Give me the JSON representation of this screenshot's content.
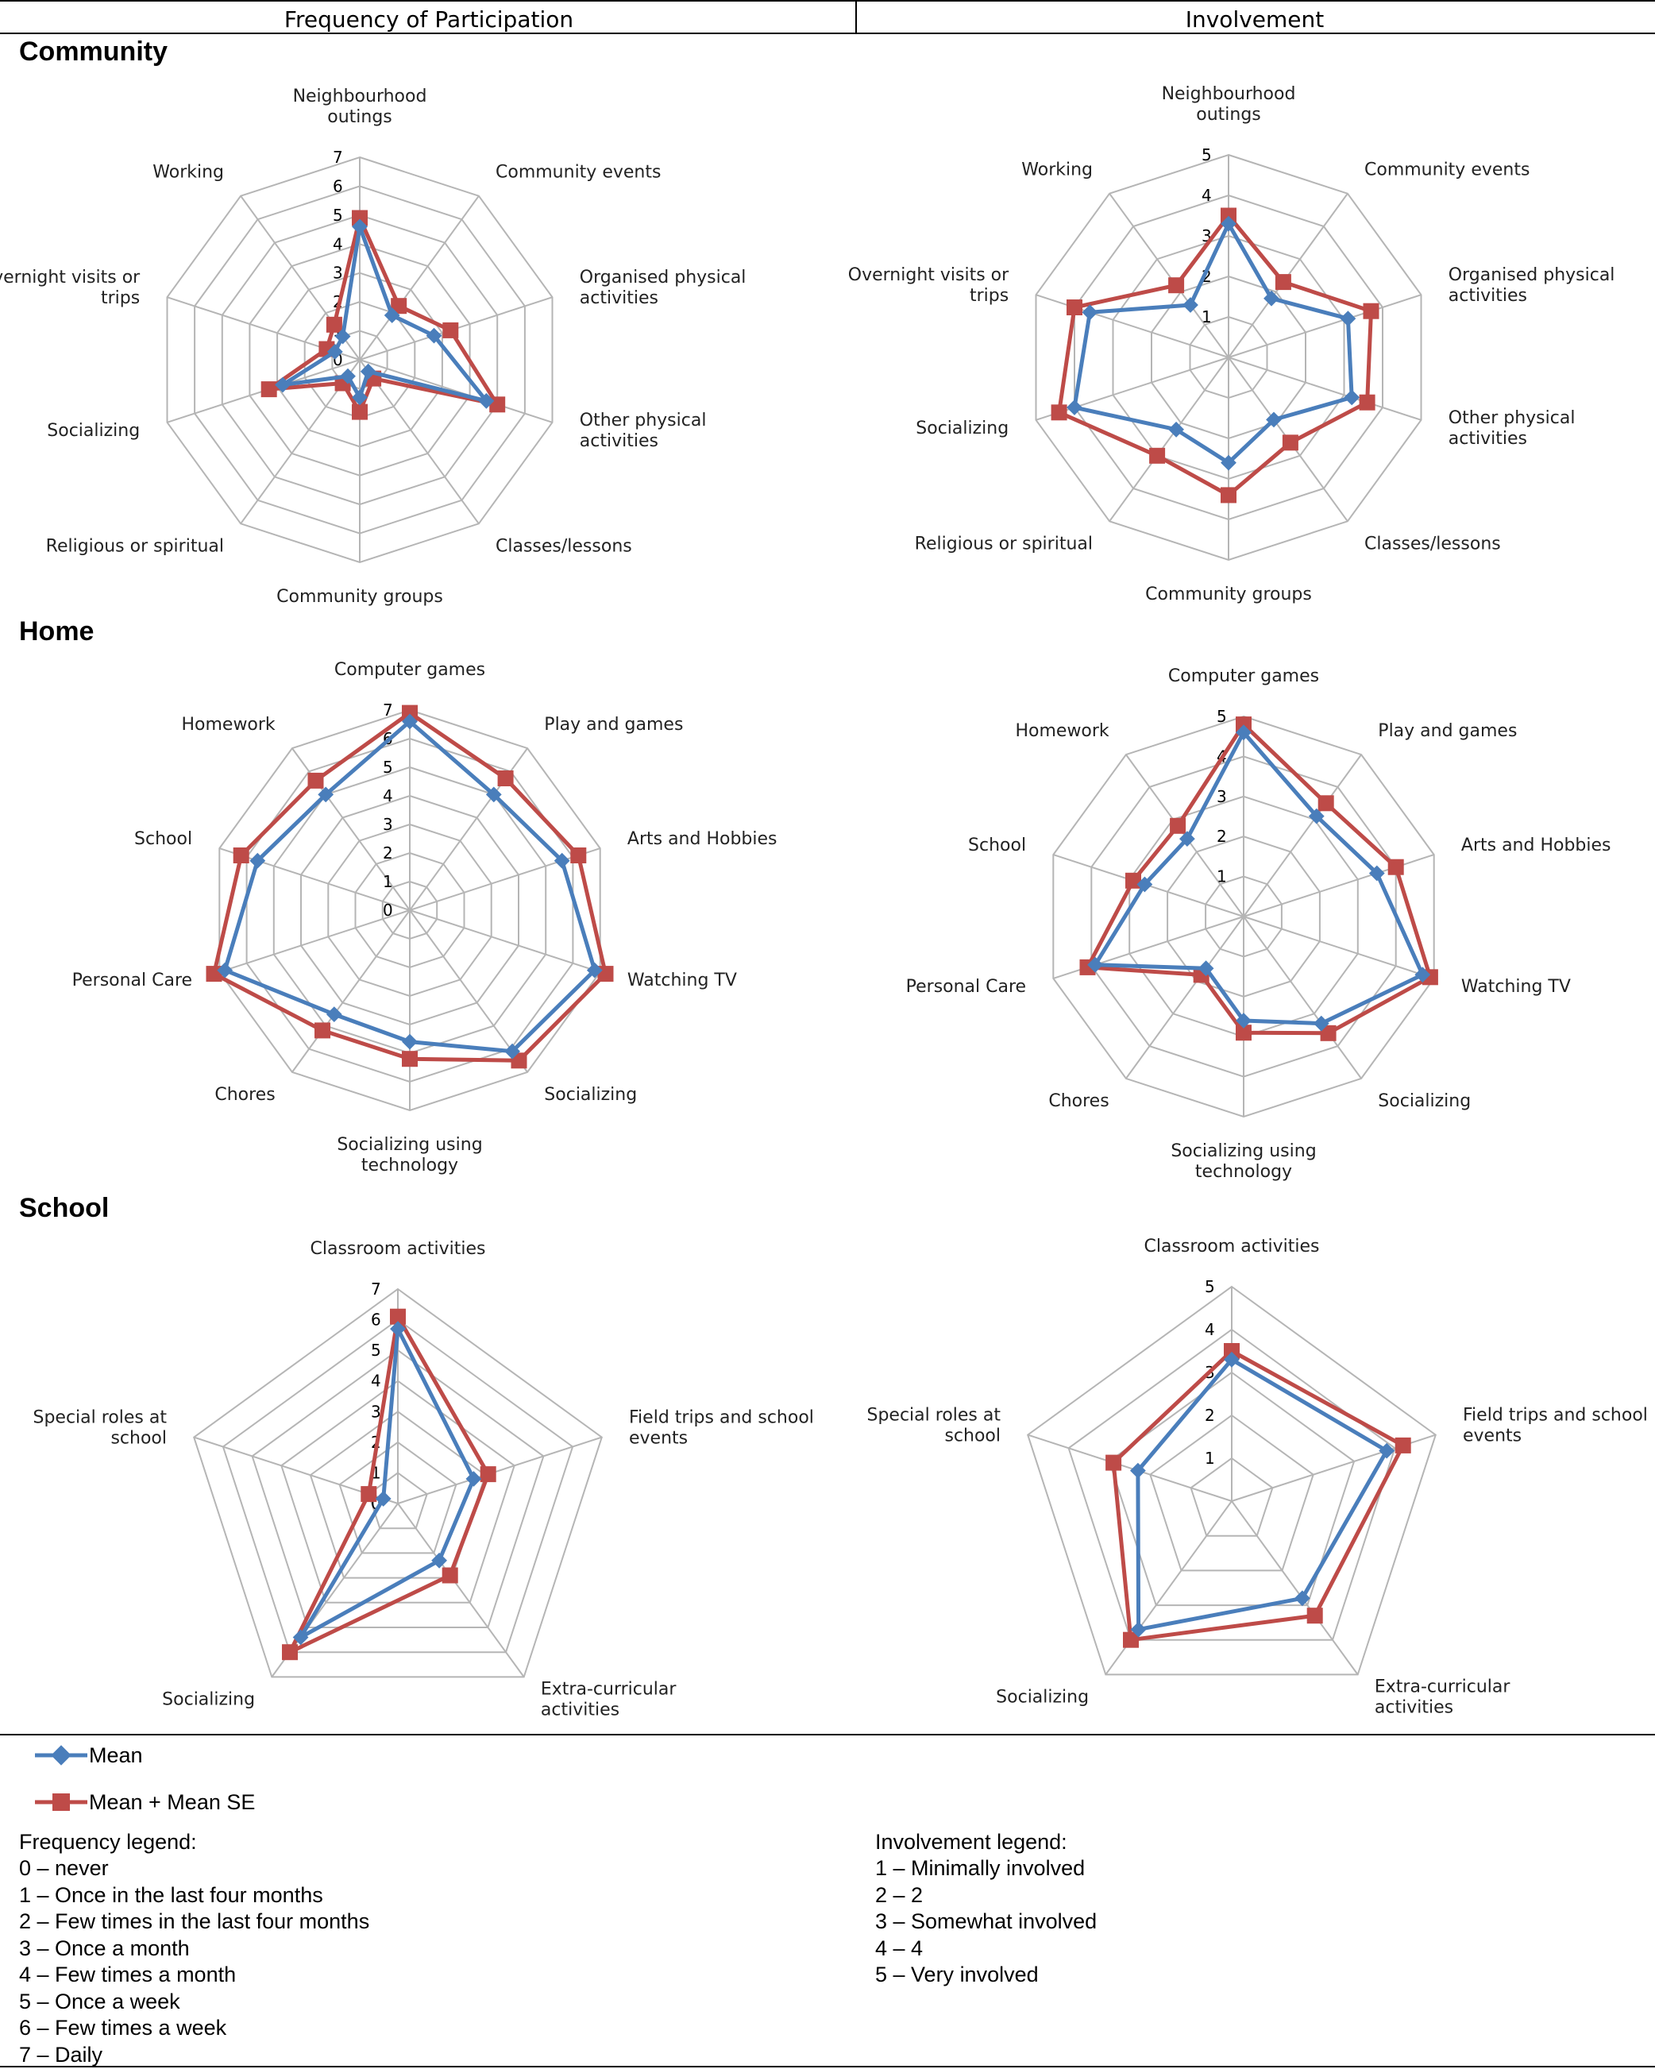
{
  "columns": {
    "left": "Frequency of Participation",
    "right": "Involvement"
  },
  "sections": [
    {
      "title": "Community"
    },
    {
      "title": "Home"
    },
    {
      "title": "School"
    }
  ],
  "legend": {
    "mean": "Mean",
    "mean_se": "Mean + Mean SE",
    "mean_color": "#4a7ebb",
    "mean_se_color": "#be4b48"
  },
  "frequency_legend": {
    "title": "Frequency legend:",
    "items": [
      "0 – never",
      "1 – Once in the last four months",
      "2 – Few times in the last four months",
      "3 – Once a month",
      "4 – Few times a month",
      "5 – Once a week",
      "6 – Few times a week",
      "7 – Daily"
    ]
  },
  "involvement_legend": {
    "title": "Involvement legend:",
    "items": [
      "1 – Minimally involved",
      "2 – 2",
      "3 – Somewhat involved",
      "4 – 4",
      "5 – Very involved"
    ]
  },
  "chart_data": [
    {
      "type": "radar",
      "section": "Community",
      "title": "Frequency of Participation",
      "scale": [
        0,
        7
      ],
      "ticks": [
        "0",
        "1",
        "2",
        "3",
        "4",
        "5",
        "6",
        "7"
      ],
      "categories": [
        "Neighbourhood outings",
        "Community events",
        "Organised physical activities",
        "Other physical activities",
        "Classes/lessons",
        "Community groups",
        "Religious or spiritual",
        "Socializing",
        "Overnight visits or trips",
        "Working"
      ],
      "label_lines": [
        [
          "Neighbourhood",
          "outings"
        ],
        [
          "Community events"
        ],
        [
          "Organised physical",
          "activities"
        ],
        [
          "Other physical",
          "activities"
        ],
        [
          "Classes/lessons"
        ],
        [
          "Community groups"
        ],
        [
          "Religious or spiritual"
        ],
        [
          "Socializing"
        ],
        [
          "Overnight visits or",
          "trips"
        ],
        [
          "Working"
        ]
      ],
      "series": [
        {
          "name": "Mean",
          "values": [
            4.6,
            1.9,
            2.7,
            4.6,
            0.5,
            1.3,
            0.7,
            2.8,
            0.9,
            1.0
          ]
        },
        {
          "name": "Mean + Mean SE",
          "values": [
            4.9,
            2.3,
            3.3,
            5.0,
            0.8,
            1.8,
            1.0,
            3.3,
            1.2,
            1.5
          ]
        }
      ]
    },
    {
      "type": "radar",
      "section": "Community",
      "title": "Involvement",
      "scale": [
        0,
        5
      ],
      "ticks": [
        "1",
        "2",
        "3",
        "4",
        "5"
      ],
      "categories": [
        "Neighbourhood outings",
        "Community events",
        "Organised physical activities",
        "Other physical activities",
        "Classes/lessons",
        "Community groups",
        "Religious or spiritual",
        "Socializing",
        "Overnight visits or trips",
        "Working"
      ],
      "label_lines": [
        [
          "Neighbourhood",
          "outings"
        ],
        [
          "Community events"
        ],
        [
          "Organised physical",
          "activities"
        ],
        [
          "Other physical",
          "activities"
        ],
        [
          "Classes/lessons"
        ],
        [
          "Community groups"
        ],
        [
          "Religious or spiritual"
        ],
        [
          "Socializing"
        ],
        [
          "Overnight visits or",
          "trips"
        ],
        [
          "Working"
        ]
      ],
      "series": [
        {
          "name": "Mean",
          "values": [
            3.3,
            1.8,
            3.1,
            3.2,
            1.9,
            2.6,
            2.2,
            4.0,
            3.6,
            1.6
          ]
        },
        {
          "name": "Mean + Mean SE",
          "values": [
            3.5,
            2.3,
            3.7,
            3.6,
            2.6,
            3.4,
            3.0,
            4.4,
            4.0,
            2.2
          ]
        }
      ]
    },
    {
      "type": "radar",
      "section": "Home",
      "title": "Frequency of Participation",
      "scale": [
        0,
        7
      ],
      "ticks": [
        "0",
        "1",
        "2",
        "3",
        "4",
        "5",
        "6",
        "7"
      ],
      "categories": [
        "Computer games",
        "Play and games",
        "Arts and Hobbies",
        "Watching TV",
        "Socializing",
        "Socializing using technology",
        "Chores",
        "Personal Care",
        "School",
        "Homework"
      ],
      "label_lines": [
        [
          "Computer games"
        ],
        [
          "Play and games"
        ],
        [
          "Arts and Hobbies"
        ],
        [
          "Watching TV"
        ],
        [
          "Socializing"
        ],
        [
          "Socializing using",
          "technology"
        ],
        [
          "Chores"
        ],
        [
          "Personal Care"
        ],
        [
          "School"
        ],
        [
          "Homework"
        ]
      ],
      "series": [
        {
          "name": "Mean",
          "values": [
            6.6,
            5.0,
            5.6,
            6.8,
            6.1,
            4.6,
            4.5,
            6.8,
            5.6,
            5.0
          ]
        },
        {
          "name": "Mean + Mean SE",
          "values": [
            6.9,
            5.7,
            6.2,
            7.2,
            6.5,
            5.2,
            5.2,
            7.2,
            6.2,
            5.6
          ]
        }
      ]
    },
    {
      "type": "radar",
      "section": "Home",
      "title": "Involvement",
      "scale": [
        0,
        5
      ],
      "ticks": [
        "1",
        "2",
        "3",
        "4",
        "5"
      ],
      "categories": [
        "Computer games",
        "Play and games",
        "Arts and Hobbies",
        "Watching TV",
        "Socializing",
        "Socializing using technology",
        "Chores",
        "Personal Care",
        "School",
        "Homework"
      ],
      "label_lines": [
        [
          "Computer games"
        ],
        [
          "Play and games"
        ],
        [
          "Arts and Hobbies"
        ],
        [
          "Watching TV"
        ],
        [
          "Socializing"
        ],
        [
          "Socializing using",
          "technology"
        ],
        [
          "Chores"
        ],
        [
          "Personal Care"
        ],
        [
          "School"
        ],
        [
          "Homework"
        ]
      ],
      "series": [
        {
          "name": "Mean",
          "values": [
            4.6,
            3.1,
            3.5,
            4.7,
            3.3,
            2.6,
            1.6,
            3.9,
            2.6,
            2.4
          ]
        },
        {
          "name": "Mean + Mean SE",
          "values": [
            4.8,
            3.5,
            4.0,
            4.9,
            3.6,
            2.9,
            1.8,
            4.1,
            2.9,
            2.8
          ]
        }
      ]
    },
    {
      "type": "radar",
      "section": "School",
      "title": "Frequency of Participation",
      "scale": [
        0,
        7
      ],
      "ticks": [
        "0",
        "1",
        "2",
        "3",
        "4",
        "5",
        "6",
        "7"
      ],
      "categories": [
        "Classroom activities",
        "Field trips and school events",
        "Extra-curricular activities",
        "Socializing",
        "Special roles at school"
      ],
      "label_lines": [
        [
          "Classroom activities"
        ],
        [
          "Field trips and school",
          "events"
        ],
        [
          "Extra-curricular",
          "activities"
        ],
        [
          "Socializing"
        ],
        [
          "Special roles at",
          "school"
        ]
      ],
      "series": [
        {
          "name": "Mean",
          "values": [
            5.7,
            2.6,
            2.3,
            5.4,
            0.5
          ]
        },
        {
          "name": "Mean + Mean SE",
          "values": [
            6.1,
            3.1,
            2.9,
            6.0,
            1.0
          ]
        }
      ]
    },
    {
      "type": "radar",
      "section": "School",
      "title": "Involvement",
      "scale": [
        0,
        5
      ],
      "ticks": [
        "1",
        "2",
        "3",
        "4",
        "5"
      ],
      "categories": [
        "Classroom activities",
        "Field trips and school events",
        "Extra-curricular activities",
        "Socializing",
        "Special roles at school"
      ],
      "label_lines": [
        [
          "Classroom activities"
        ],
        [
          "Field trips and school",
          "events"
        ],
        [
          "Extra-curricular",
          "activities"
        ],
        [
          "Socializing"
        ],
        [
          "Special roles at",
          "school"
        ]
      ],
      "series": [
        {
          "name": "Mean",
          "values": [
            3.3,
            3.8,
            2.8,
            3.7,
            2.3
          ]
        },
        {
          "name": "Mean + Mean SE",
          "values": [
            3.5,
            4.2,
            3.3,
            4.0,
            2.9
          ]
        }
      ]
    }
  ]
}
